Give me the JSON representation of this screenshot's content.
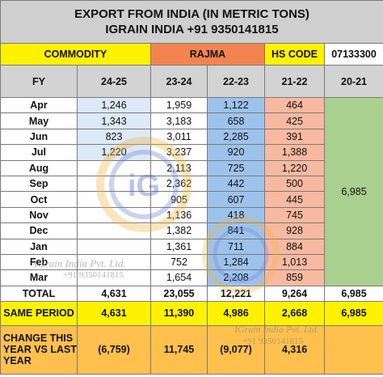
{
  "title": {
    "line1": "EXPORT FROM INDIA (IN METRIC TONS)",
    "line2": "IGRAIN INDIA +91 9350141815"
  },
  "header": {
    "commodity_label": "COMMODITY",
    "commodity_value": "RAJMA",
    "hs_code_label": "HS CODE",
    "hs_code_value": "07133300"
  },
  "columns": {
    "fy": "FY",
    "years": [
      "24-25",
      "23-24",
      "22-23",
      "21-22",
      "20-21"
    ]
  },
  "rows": [
    {
      "month": "Apr",
      "v2425": "1,246",
      "v2324": "1,959",
      "v2223": "1,122",
      "v2122": "464"
    },
    {
      "month": "May",
      "v2425": "1,343",
      "v2324": "3,183",
      "v2223": "658",
      "v2122": "425"
    },
    {
      "month": "Jun",
      "v2425": "823",
      "v2324": "3,011",
      "v2223": "2,285",
      "v2122": "391"
    },
    {
      "month": "Jul",
      "v2425": "1,220",
      "v2324": "3,237",
      "v2223": "920",
      "v2122": "1,388"
    },
    {
      "month": "Aug",
      "v2425": "",
      "v2324": "2,113",
      "v2223": "725",
      "v2122": "1,220"
    },
    {
      "month": "Sep",
      "v2425": "",
      "v2324": "2,362",
      "v2223": "442",
      "v2122": "500"
    },
    {
      "month": "Oct",
      "v2425": "",
      "v2324": "905",
      "v2223": "607",
      "v2122": "445"
    },
    {
      "month": "Nov",
      "v2425": "",
      "v2324": "1,136",
      "v2223": "418",
      "v2122": "745"
    },
    {
      "month": "Dec",
      "v2425": "",
      "v2324": "1,382",
      "v2223": "841",
      "v2122": "928"
    },
    {
      "month": "Jan",
      "v2425": "",
      "v2324": "1,361",
      "v2223": "711",
      "v2122": "884"
    },
    {
      "month": "Feb",
      "v2425": "",
      "v2324": "752",
      "v2223": "1,284",
      "v2122": "1,013"
    },
    {
      "month": "Mar",
      "v2425": "",
      "v2324": "1,654",
      "v2223": "2,208",
      "v2122": "859"
    }
  ],
  "v2021_merged": "6,985",
  "total": {
    "label": "TOTAL",
    "v2425": "4,631",
    "v2324": "23,055",
    "v2223": "12,221",
    "v2122": "9,264",
    "v2021": "6,985"
  },
  "same_period": {
    "label": "SAME PERIOD",
    "v2425": "4,631",
    "v2324": "11,390",
    "v2223": "4,986",
    "v2122": "2,668",
    "v2021": "6,985"
  },
  "change": {
    "label": "CHANGE THIS YEAR VS LAST YEAR",
    "v2425": "(6,759)",
    "v2324": "11,745",
    "v2223": "(9,077)",
    "v2122": "4,316",
    "v2021": ""
  },
  "watermark": {
    "logo_text": "iG",
    "company": "IGrain India Pvt. Ltd.",
    "phone": "+91 9350141815"
  },
  "colors": {
    "yellow": "#fff200",
    "orange_header": "#f4844f",
    "blue_column": "#9dc3ec",
    "salmon_column": "#f8b9a1",
    "green_column": "#a9d08e",
    "negative": "#e1262d",
    "positive": "#5fb233"
  }
}
